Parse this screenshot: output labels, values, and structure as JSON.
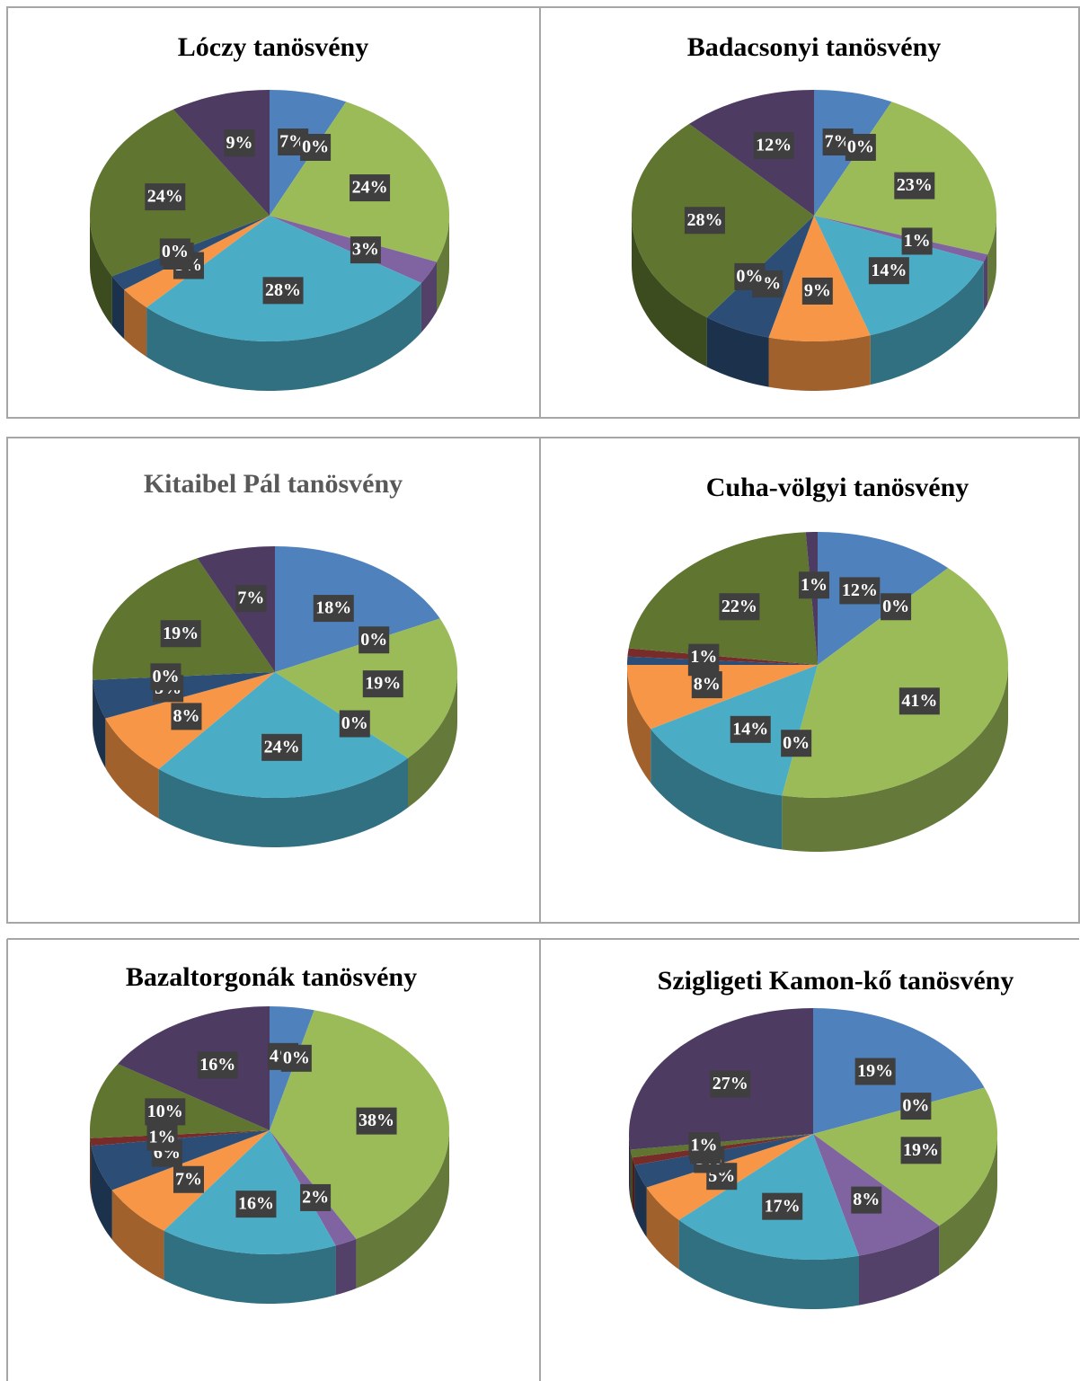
{
  "chart_data": [
    {
      "type": "pie",
      "title": "Lóczy tanösvény",
      "values": [
        7,
        0,
        24,
        3,
        28,
        3,
        2,
        0,
        24,
        9
      ],
      "value_labels": [
        "7%",
        "0%",
        "24%",
        "3%",
        "28%",
        "3%",
        "2%",
        "0%",
        "24%",
        "9%"
      ],
      "colors": [
        "#4f81bd",
        "#c0504d",
        "#9bbb59",
        "#8064a2",
        "#4bacc6",
        "#f79646",
        "#2c4d75",
        "#772c2a",
        "#5f7530",
        "#4d3b62"
      ]
    },
    {
      "type": "pie",
      "title": "Badacsonyi tanösvény",
      "values": [
        7,
        0,
        23,
        1,
        14,
        9,
        6,
        0,
        28,
        12
      ],
      "value_labels": [
        "7%",
        "0%",
        "23%",
        "1%",
        "14%",
        "9%",
        "6%",
        "0%",
        "28%",
        "12%"
      ],
      "colors": [
        "#4f81bd",
        "#c0504d",
        "#9bbb59",
        "#8064a2",
        "#4bacc6",
        "#f79646",
        "#2c4d75",
        "#772c2a",
        "#5f7530",
        "#4d3b62"
      ]
    },
    {
      "type": "pie",
      "title": "Kitaibel Pál tanösvény",
      "values": [
        18,
        0,
        19,
        0,
        24,
        8,
        5,
        0,
        19,
        7
      ],
      "value_labels": [
        "18%",
        "0%",
        "19%",
        "0%",
        "24%",
        "8%",
        "5%",
        "0%",
        "19%",
        "7%"
      ],
      "colors": [
        "#4f81bd",
        "#c0504d",
        "#9bbb59",
        "#8064a2",
        "#4bacc6",
        "#f79646",
        "#2c4d75",
        "#772c2a",
        "#5f7530",
        "#4d3b62"
      ]
    },
    {
      "type": "pie",
      "title": "Cuha-völgyi tanösvény",
      "values": [
        12,
        0,
        41,
        0,
        14,
        8,
        1,
        1,
        22,
        1
      ],
      "value_labels": [
        "12%",
        "0%",
        "41%",
        "0%",
        "14%",
        "8%",
        "1%",
        "1%",
        "22%",
        "1%"
      ],
      "colors": [
        "#4f81bd",
        "#c0504d",
        "#9bbb59",
        "#8064a2",
        "#4bacc6",
        "#f79646",
        "#2c4d75",
        "#772c2a",
        "#5f7530",
        "#4d3b62"
      ]
    },
    {
      "type": "pie",
      "title": "Bazaltorgonák tanösvény",
      "values": [
        4,
        0,
        38,
        2,
        16,
        7,
        6,
        1,
        10,
        16
      ],
      "value_labels": [
        "4%",
        "0%",
        "38%",
        "2%",
        "16%",
        "7%",
        "6%",
        "1%",
        "10%",
        "16%"
      ],
      "colors": [
        "#4f81bd",
        "#c0504d",
        "#9bbb59",
        "#8064a2",
        "#4bacc6",
        "#f79646",
        "#2c4d75",
        "#772c2a",
        "#5f7530",
        "#4d3b62"
      ]
    },
    {
      "type": "pie",
      "title": "Szigligeti Kamon-kő tanösvény",
      "values": [
        19,
        0,
        19,
        8,
        17,
        5,
        3,
        1,
        1,
        27
      ],
      "value_labels": [
        "19%",
        "0%",
        "19%",
        "8%",
        "17%",
        "5%",
        "3%",
        "1%",
        "1%",
        "27%"
      ],
      "colors": [
        "#4f81bd",
        "#c0504d",
        "#9bbb59",
        "#8064a2",
        "#4bacc6",
        "#f79646",
        "#2c4d75",
        "#772c2a",
        "#5f7530",
        "#4d3b62"
      ]
    }
  ]
}
